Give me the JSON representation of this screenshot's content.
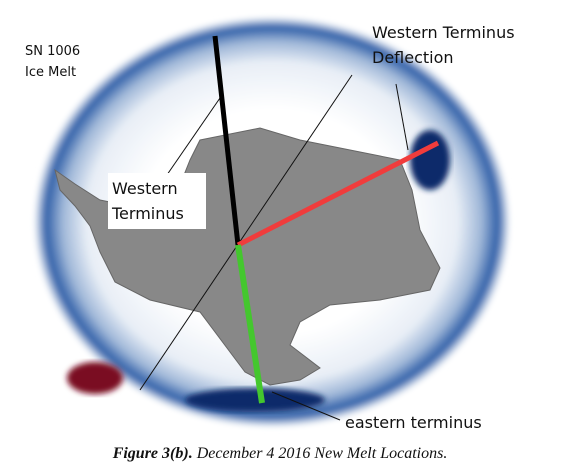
{
  "labels": {
    "sn1006": [
      "SN 1006",
      "Ice Melt"
    ],
    "deflection": [
      "Western Terminus",
      "Deflection"
    ],
    "western": [
      "Western",
      "Terminus"
    ],
    "eastern": "eastern terminus"
  },
  "caption": {
    "label": "Figure 3(b).",
    "text": "December 4 2016 New Melt Locations."
  }
}
